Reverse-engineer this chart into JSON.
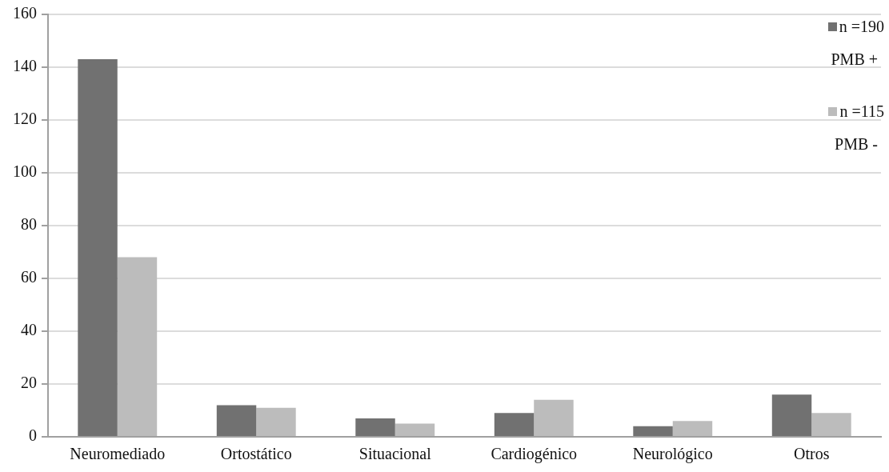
{
  "chart_data": {
    "type": "bar",
    "categories": [
      "Neuromediado",
      "Ortostático",
      "Situacional",
      "Cardiogénico",
      "Neurológico",
      "Otros"
    ],
    "series": [
      {
        "name": "n =190",
        "color": "#717171",
        "values": [
          143,
          12,
          7,
          9,
          4,
          16
        ]
      },
      {
        "name": "n =115",
        "color": "#bcbcbc",
        "values": [
          68,
          11,
          5,
          14,
          6,
          9
        ]
      }
    ],
    "annotations": [
      "PMB +",
      "PMB -"
    ],
    "ylim": [
      0,
      160
    ],
    "yticks": [
      0,
      20,
      40,
      60,
      80,
      100,
      120,
      140,
      160
    ],
    "grid": "y",
    "legend": "top right"
  }
}
